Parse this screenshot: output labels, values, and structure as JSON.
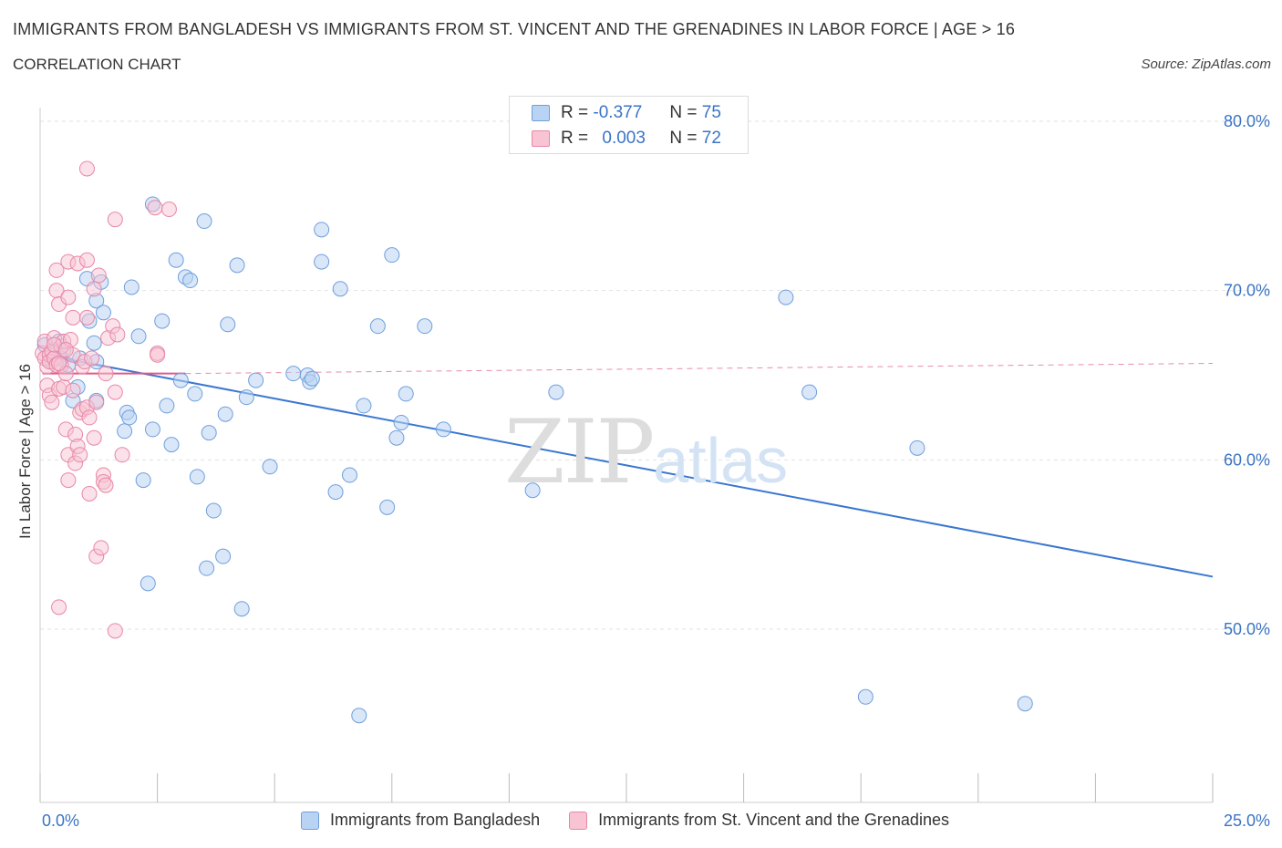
{
  "header": {
    "title": "IMMIGRANTS FROM BANGLADESH VS IMMIGRANTS FROM ST. VINCENT AND THE GRENADINES IN LABOR FORCE | AGE > 16",
    "subtitle": "CORRELATION CHART",
    "source": "Source: ZipAtlas.com"
  },
  "watermark": {
    "zip": "ZIP",
    "atlas": "atlas"
  },
  "legend": {
    "rows": [
      {
        "r_label": "R =",
        "r_value": "-0.377",
        "n_label": "N =",
        "n_value": "75"
      },
      {
        "r_label": "R =",
        "r_value": "0.003",
        "n_label": "N =",
        "n_value": "72"
      }
    ]
  },
  "colors": {
    "series1_fill": "#b9d3f3",
    "series1_stroke": "#6f9fdc",
    "series1_line": "#3a77d1",
    "series2_fill": "#f8c4d4",
    "series2_stroke": "#e887a6",
    "series2_line": "#e05a86",
    "tick_label": "#3a74c4",
    "grid": "#e2e2e2"
  },
  "chart_data": {
    "type": "scatter",
    "ylabel": "In Labor Force | Age > 16",
    "xlim": [
      0,
      25
    ],
    "ylim": [
      40,
      80
    ],
    "y_ticks": [
      50,
      60,
      70,
      80
    ],
    "y_tick_labels": [
      "50.0%",
      "60.0%",
      "70.0%",
      "80.0%"
    ],
    "x_tick_labels": [
      "0.0%",
      "25.0%"
    ],
    "grid": true,
    "series": [
      {
        "name": "Immigrants from Bangladesh",
        "trend": {
          "x": [
            0.1,
            25
          ],
          "y": [
            66.2,
            53.1
          ],
          "style": "solid"
        },
        "points": [
          [
            0.1,
            66.8
          ],
          [
            0.2,
            66.2
          ],
          [
            0.25,
            65.8
          ],
          [
            0.3,
            66.5
          ],
          [
            0.4,
            67
          ],
          [
            0.45,
            66
          ],
          [
            0.5,
            66.5
          ],
          [
            0.6,
            65.6
          ],
          [
            0.7,
            63.5
          ],
          [
            0.8,
            64.3
          ],
          [
            0.85,
            66
          ],
          [
            1.0,
            70.7
          ],
          [
            1.05,
            68.2
          ],
          [
            1.15,
            66.9
          ],
          [
            1.2,
            69.4
          ],
          [
            1.3,
            70.5
          ],
          [
            1.35,
            68.7
          ],
          [
            1.2,
            65.8
          ],
          [
            1.2,
            63.5
          ],
          [
            1.85,
            62.8
          ],
          [
            1.8,
            61.7
          ],
          [
            1.9,
            62.5
          ],
          [
            1.95,
            70.2
          ],
          [
            2.1,
            67.3
          ],
          [
            2.2,
            58.8
          ],
          [
            2.3,
            52.7
          ],
          [
            2.4,
            75.1
          ],
          [
            2.4,
            61.8
          ],
          [
            2.6,
            68.2
          ],
          [
            2.7,
            63.2
          ],
          [
            2.8,
            60.9
          ],
          [
            2.9,
            71.8
          ],
          [
            3.0,
            64.7
          ],
          [
            3.1,
            70.8
          ],
          [
            3.2,
            70.6
          ],
          [
            3.3,
            63.9
          ],
          [
            3.35,
            59
          ],
          [
            3.5,
            74.1
          ],
          [
            3.55,
            53.6
          ],
          [
            3.6,
            61.6
          ],
          [
            3.7,
            57
          ],
          [
            3.9,
            54.3
          ],
          [
            3.95,
            62.7
          ],
          [
            4.0,
            68
          ],
          [
            4.2,
            71.5
          ],
          [
            4.3,
            51.2
          ],
          [
            4.4,
            63.7
          ],
          [
            4.6,
            64.7
          ],
          [
            4.9,
            59.6
          ],
          [
            5.4,
            65.1
          ],
          [
            5.7,
            65
          ],
          [
            5.75,
            64.6
          ],
          [
            5.8,
            64.8
          ],
          [
            6.0,
            71.7
          ],
          [
            6.0,
            73.6
          ],
          [
            6.3,
            58.1
          ],
          [
            6.4,
            70.1
          ],
          [
            6.6,
            59.1
          ],
          [
            6.8,
            44.9
          ],
          [
            6.9,
            63.2
          ],
          [
            7.2,
            67.9
          ],
          [
            7.4,
            57.2
          ],
          [
            7.5,
            72.1
          ],
          [
            7.6,
            61.3
          ],
          [
            7.7,
            62.2
          ],
          [
            7.8,
            63.9
          ],
          [
            8.2,
            67.9
          ],
          [
            8.6,
            61.8
          ],
          [
            10.5,
            58.2
          ],
          [
            11.0,
            64
          ],
          [
            15.9,
            69.6
          ],
          [
            16.4,
            64
          ],
          [
            17.6,
            46
          ],
          [
            18.7,
            60.7
          ],
          [
            21.0,
            45.6
          ]
        ]
      },
      {
        "name": "Immigrants from St. Vincent and the Grenadines",
        "trend_solid": {
          "x": [
            0.05,
            3.1
          ],
          "y": [
            65.1,
            65.1
          ]
        },
        "trend_dashed": {
          "x": [
            3.1,
            25
          ],
          "y": [
            65.1,
            65.7
          ]
        },
        "points": [
          [
            0.05,
            66.3
          ],
          [
            0.1,
            67
          ],
          [
            0.1,
            66
          ],
          [
            0.15,
            65.5
          ],
          [
            0.15,
            64.4
          ],
          [
            0.2,
            66.2
          ],
          [
            0.2,
            65.8
          ],
          [
            0.2,
            63.8
          ],
          [
            0.25,
            63.4
          ],
          [
            0.25,
            66.4
          ],
          [
            0.3,
            67.2
          ],
          [
            0.3,
            66
          ],
          [
            0.35,
            70
          ],
          [
            0.35,
            71.2
          ],
          [
            0.35,
            65.6
          ],
          [
            0.4,
            69.2
          ],
          [
            0.4,
            64.2
          ],
          [
            0.4,
            51.3
          ],
          [
            0.45,
            66.7
          ],
          [
            0.45,
            65.6
          ],
          [
            0.5,
            67
          ],
          [
            0.5,
            64.3
          ],
          [
            0.55,
            61.8
          ],
          [
            0.55,
            65.1
          ],
          [
            0.6,
            71.7
          ],
          [
            0.6,
            69.6
          ],
          [
            0.6,
            60.3
          ],
          [
            0.6,
            58.8
          ],
          [
            0.65,
            67.1
          ],
          [
            0.7,
            68.4
          ],
          [
            0.7,
            66.2
          ],
          [
            0.7,
            64.1
          ],
          [
            0.75,
            61.5
          ],
          [
            0.75,
            59.8
          ],
          [
            0.8,
            71.6
          ],
          [
            0.8,
            60.8
          ],
          [
            0.85,
            62.8
          ],
          [
            0.85,
            60.3
          ],
          [
            0.9,
            63
          ],
          [
            0.9,
            65.5
          ],
          [
            0.95,
            65.8
          ],
          [
            1.0,
            68.4
          ],
          [
            1.0,
            63.1
          ],
          [
            1.05,
            62.5
          ],
          [
            1.0,
            71.8
          ],
          [
            1.0,
            77.2
          ],
          [
            1.05,
            58
          ],
          [
            1.1,
            66
          ],
          [
            1.15,
            70.1
          ],
          [
            1.15,
            61.3
          ],
          [
            1.2,
            63.4
          ],
          [
            1.2,
            54.3
          ],
          [
            1.25,
            70.9
          ],
          [
            1.3,
            54.8
          ],
          [
            1.35,
            59.1
          ],
          [
            1.35,
            58.7
          ],
          [
            1.4,
            58.5
          ],
          [
            1.4,
            65.1
          ],
          [
            1.45,
            67.2
          ],
          [
            1.55,
            67.9
          ],
          [
            1.6,
            74.2
          ],
          [
            1.6,
            64
          ],
          [
            1.6,
            49.9
          ],
          [
            1.65,
            67.4
          ],
          [
            1.75,
            60.3
          ],
          [
            2.45,
            74.9
          ],
          [
            2.5,
            66.3
          ],
          [
            2.5,
            66.2
          ],
          [
            2.75,
            74.8
          ],
          [
            0.3,
            66.8
          ],
          [
            0.4,
            65.7
          ],
          [
            0.55,
            66.5
          ]
        ]
      }
    ]
  }
}
